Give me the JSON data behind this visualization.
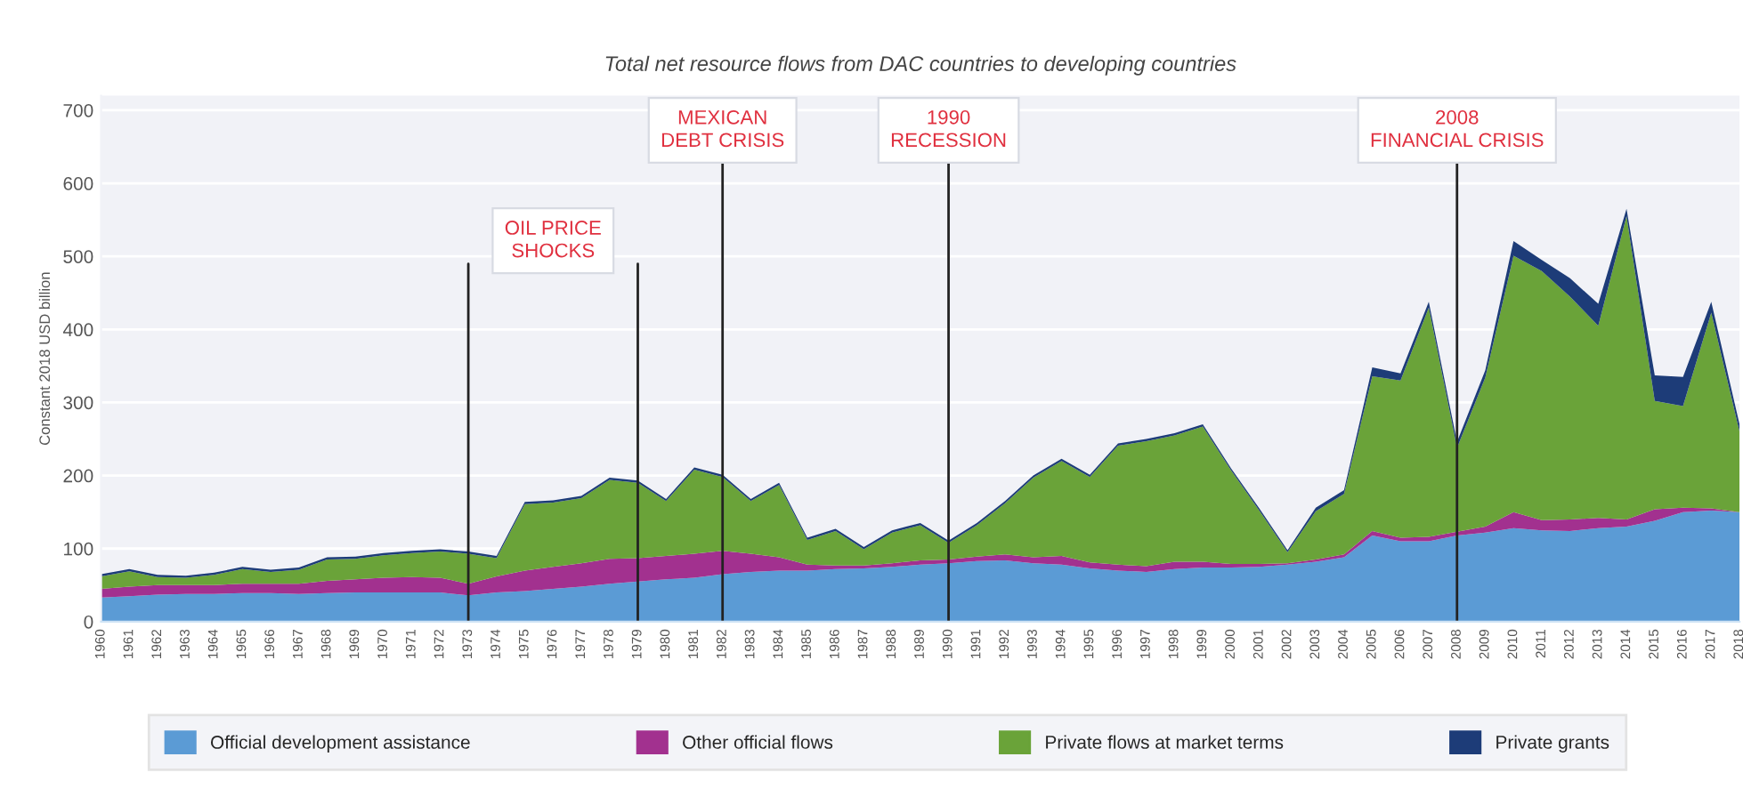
{
  "chart_data": {
    "type": "area",
    "stacked": true,
    "title": "Total net resource flows from DAC countries to developing countries",
    "ylabel": "Constant 2018 USD billion",
    "x": [
      1960,
      1961,
      1962,
      1963,
      1964,
      1965,
      1966,
      1967,
      1968,
      1969,
      1970,
      1971,
      1972,
      1973,
      1974,
      1975,
      1976,
      1977,
      1978,
      1979,
      1980,
      1981,
      1982,
      1983,
      1984,
      1985,
      1986,
      1987,
      1988,
      1989,
      1990,
      1991,
      1992,
      1993,
      1994,
      1995,
      1996,
      1997,
      1998,
      1999,
      2000,
      2001,
      2002,
      2003,
      2004,
      2005,
      2006,
      2007,
      2008,
      2009,
      2010,
      2011,
      2012,
      2013,
      2014,
      2015,
      2016,
      2017,
      2018
    ],
    "series": [
      {
        "name": "Official development assistance",
        "color": "#5b9bd5",
        "values": [
          33,
          35,
          37,
          38,
          38,
          39,
          39,
          38,
          39,
          40,
          40,
          40,
          40,
          36,
          40,
          42,
          45,
          48,
          52,
          55,
          58,
          60,
          65,
          68,
          70,
          70,
          72,
          73,
          75,
          78,
          80,
          83,
          84,
          80,
          78,
          73,
          70,
          68,
          72,
          74,
          74,
          75,
          78,
          82,
          88,
          118,
          110,
          110,
          118,
          122,
          128,
          125,
          124,
          128,
          130,
          138,
          150,
          152,
          150
        ]
      },
      {
        "name": "Other official flows",
        "color": "#a2318f",
        "values": [
          12,
          13,
          13,
          12,
          12,
          13,
          13,
          14,
          17,
          18,
          20,
          21,
          20,
          16,
          22,
          28,
          30,
          32,
          34,
          32,
          32,
          33,
          32,
          25,
          18,
          8,
          5,
          4,
          5,
          6,
          5,
          6,
          8,
          8,
          12,
          8,
          8,
          8,
          10,
          8,
          5,
          4,
          2,
          3,
          4,
          6,
          5,
          6,
          5,
          8,
          22,
          14,
          16,
          14,
          10,
          16,
          6,
          3,
          0
        ]
      },
      {
        "name": "Private flows at market terms",
        "color": "#6aa339",
        "values": [
          17,
          21,
          11,
          10,
          14,
          20,
          16,
          19,
          29,
          28,
          31,
          33,
          36,
          41,
          25,
          91,
          88,
          89,
          108,
          103,
          75,
          115,
          101,
          72,
          99,
          34,
          47,
          22,
          42,
          48,
          23,
          43,
          70,
          109,
          130,
          117,
          163,
          171,
          173,
          185,
          128,
          73,
          15,
          66,
          83,
          212,
          215,
          314,
          115,
          204,
          351,
          341,
          305,
          263,
          415,
          148,
          139,
          268,
          110
        ]
      },
      {
        "name": "Private grants",
        "color": "#1d3c78",
        "values": [
          3,
          3,
          3,
          3,
          3,
          3,
          3,
          3,
          3,
          3,
          3,
          3,
          3,
          3,
          3,
          3,
          3,
          3,
          3,
          3,
          3,
          3,
          3,
          3,
          3,
          3,
          3,
          3,
          3,
          3,
          3,
          3,
          3,
          3,
          3,
          3,
          3,
          3,
          3,
          3,
          3,
          3,
          3,
          5,
          5,
          12,
          10,
          8,
          8,
          10,
          20,
          15,
          25,
          30,
          10,
          35,
          40,
          15,
          10
        ]
      }
    ],
    "xlim": [
      1960,
      2018
    ],
    "ylim": [
      0,
      720
    ],
    "xticks": [
      1960,
      1961,
      1962,
      1963,
      1964,
      1965,
      1966,
      1967,
      1968,
      1969,
      1970,
      1971,
      1972,
      1973,
      1974,
      1975,
      1976,
      1977,
      1978,
      1979,
      1980,
      1981,
      1982,
      1983,
      1984,
      1985,
      1986,
      1987,
      1988,
      1989,
      1990,
      1991,
      1992,
      1993,
      1994,
      1995,
      1996,
      1997,
      1998,
      1999,
      2000,
      2001,
      2002,
      2003,
      2004,
      2005,
      2006,
      2007,
      2008,
      2009,
      2010,
      2011,
      2012,
      2013,
      2014,
      2015,
      2016,
      2017,
      2018
    ],
    "yticks": [
      0,
      100,
      200,
      300,
      400,
      500,
      600,
      700
    ],
    "grid": "y",
    "legend": "bottom",
    "ref_lines": [
      {
        "axis": "x",
        "value": 1973,
        "label": "OIL PRICE\nSHOCKS",
        "color": "#222222"
      },
      {
        "axis": "x",
        "value": 1979,
        "label": null,
        "color": "#222222"
      },
      {
        "axis": "x",
        "value": 1982,
        "label": "MEXICAN\nDEBT CRISIS",
        "color": "#222222"
      },
      {
        "axis": "x",
        "value": 1990,
        "label": "1990\nRECESSION",
        "color": "#222222"
      },
      {
        "axis": "x",
        "value": 2008,
        "label": "2008\nFINANCIAL CRISIS",
        "color": "#222222"
      }
    ]
  }
}
